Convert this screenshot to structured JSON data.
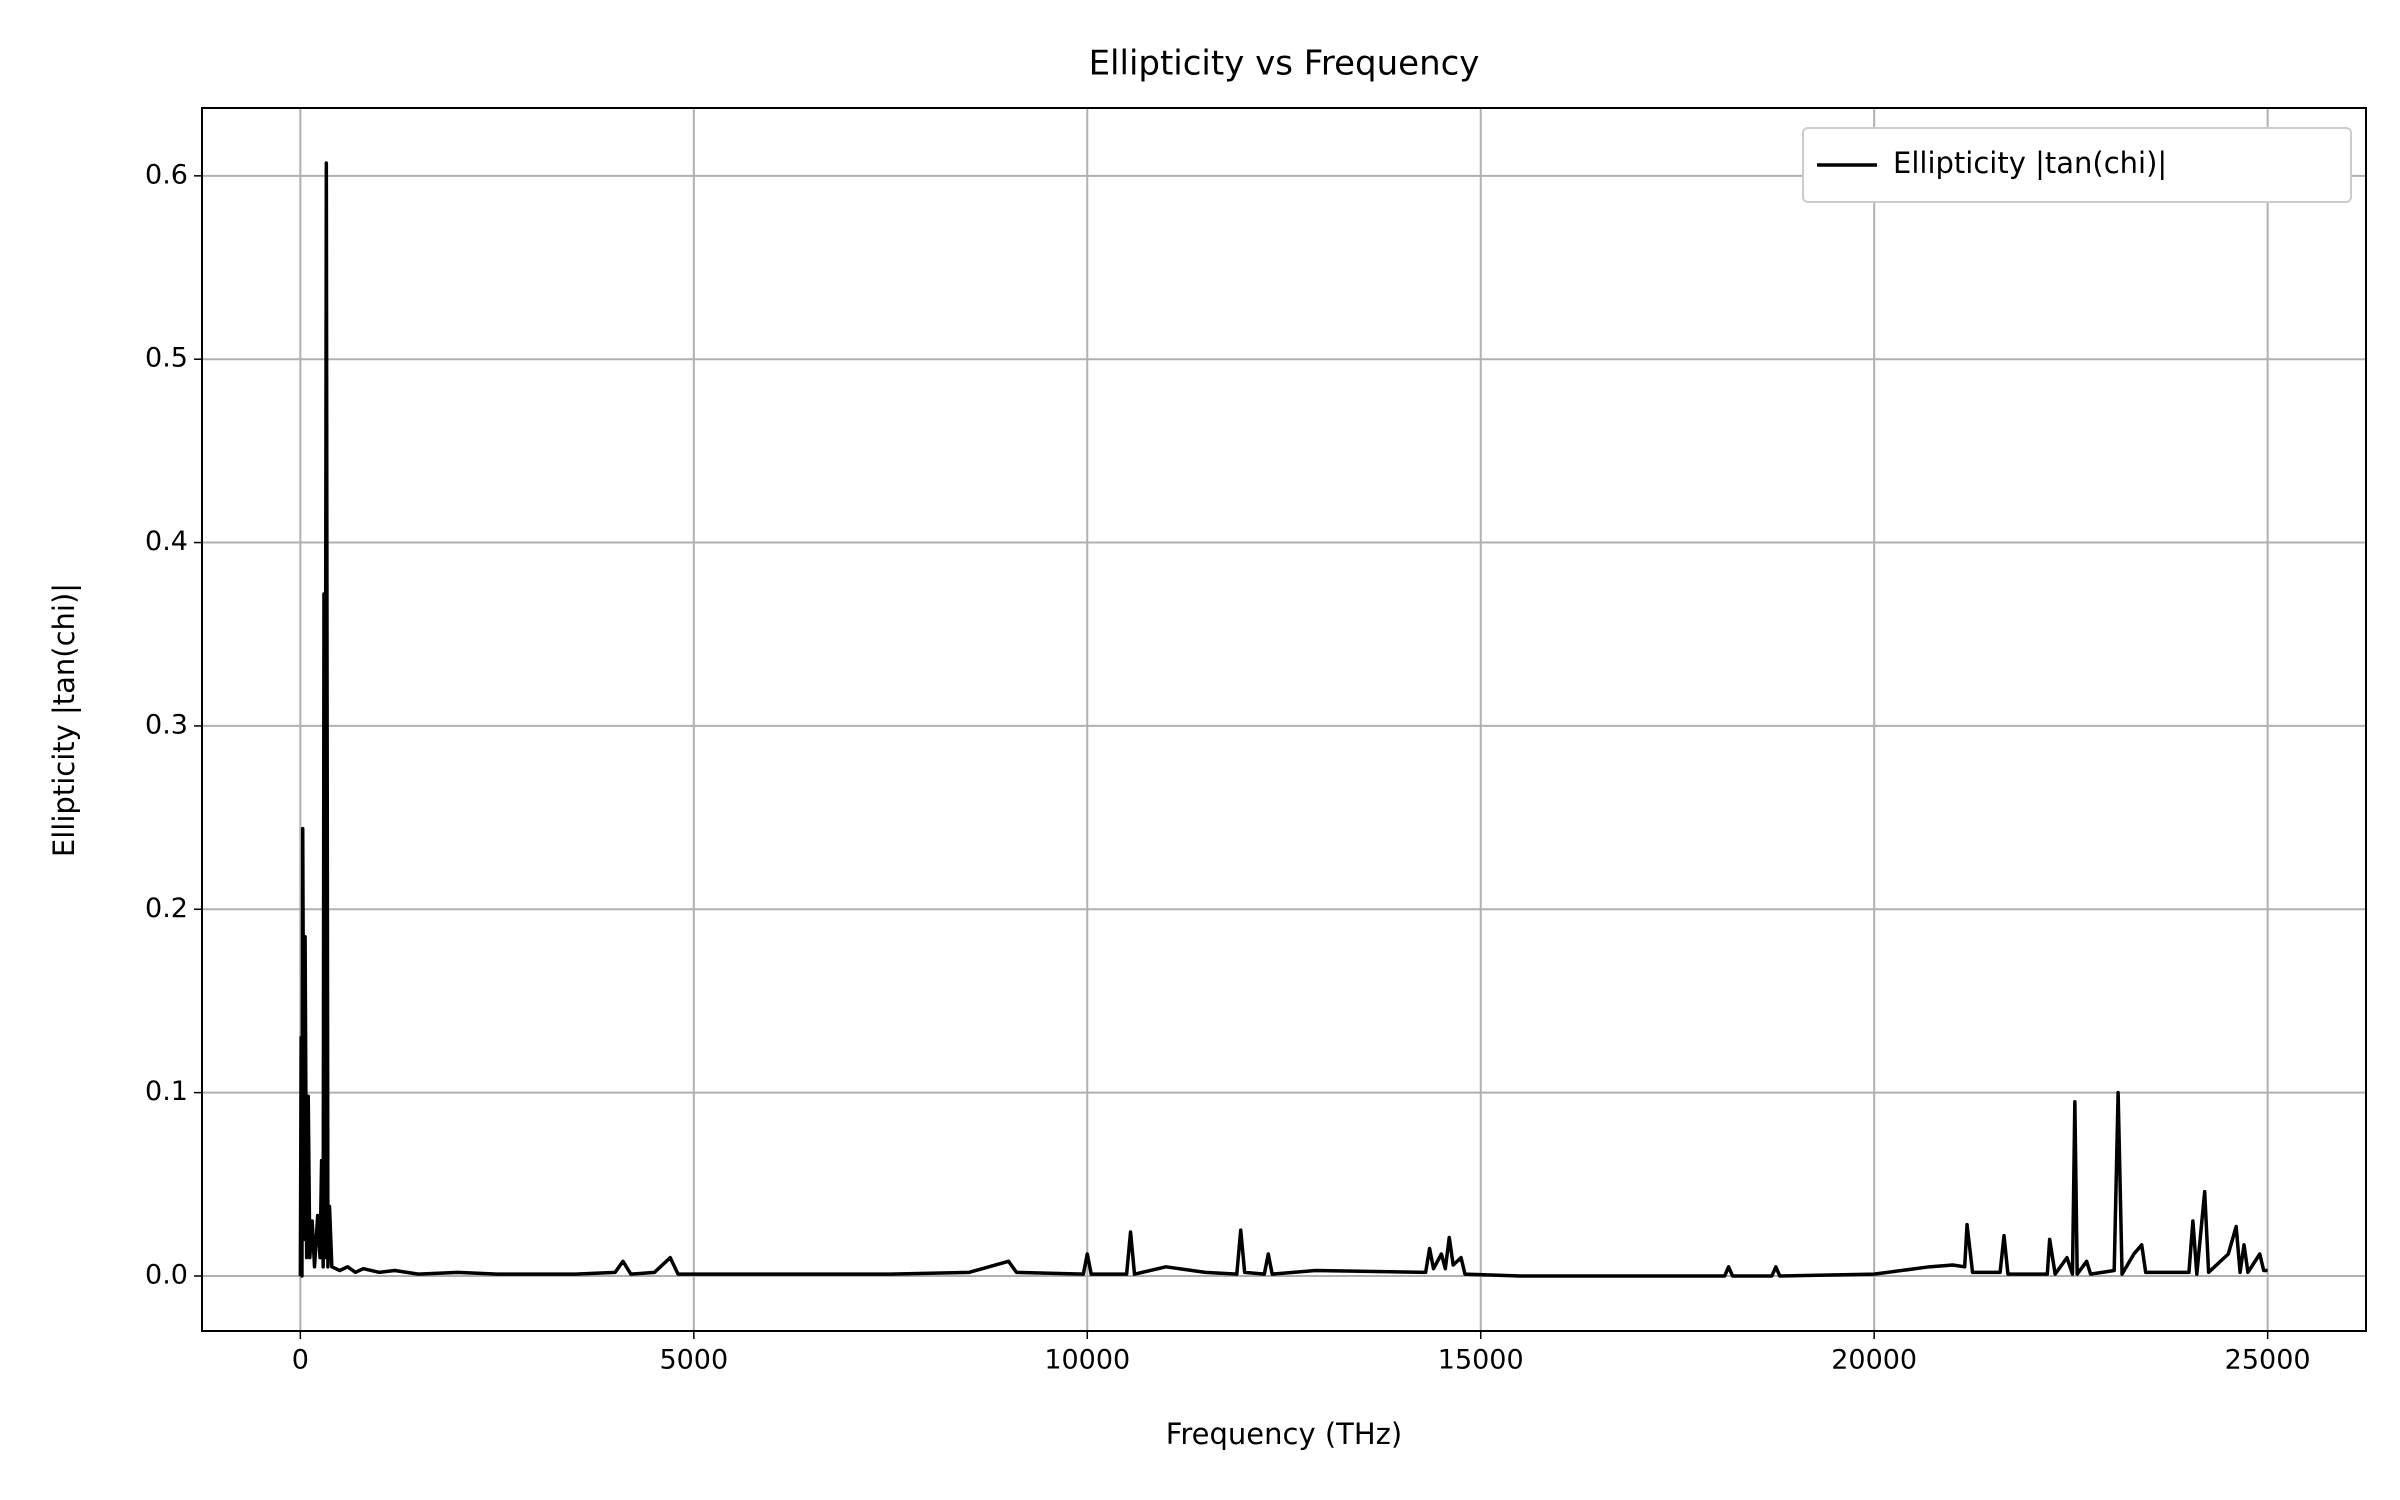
{
  "chart_data": {
    "type": "line",
    "title": "Ellipticity vs Frequency",
    "xlabel": "Frequency (THz)",
    "ylabel": "Ellipticity |tan(chi)|",
    "x": [
      0,
      10,
      20,
      30,
      50,
      60,
      80,
      100,
      120,
      150,
      180,
      220,
      250,
      270,
      290,
      300,
      310,
      330,
      350,
      370,
      400,
      500,
      600,
      700,
      800,
      1000,
      1200,
      1500,
      2000,
      2500,
      3000,
      3500,
      4000,
      4100,
      4200,
      4500,
      4700,
      4800,
      5500,
      6500,
      7500,
      8500,
      9000,
      9100,
      9950,
      10000,
      10050,
      10500,
      10550,
      10600,
      11000,
      11500,
      11900,
      11950,
      12000,
      12250,
      12300,
      12350,
      12900,
      14300,
      14350,
      14400,
      14500,
      14550,
      14600,
      14650,
      14750,
      14800,
      15500,
      17000,
      18100,
      18150,
      18200,
      18700,
      18750,
      18800,
      20000,
      20700,
      21000,
      21150,
      21180,
      21250,
      21600,
      21650,
      21700,
      22200,
      22230,
      22300,
      22450,
      22520,
      22550,
      22580,
      22700,
      22750,
      23050,
      23100,
      23150,
      23300,
      23400,
      23450,
      24000,
      24050,
      24100,
      24200,
      24250,
      24500,
      24600,
      24650,
      24700,
      24750,
      24900,
      24950,
      25000
    ],
    "series": [
      {
        "name": "Ellipticity |tan(chi)|",
        "color": "#000000",
        "values": [
          0,
          0.13,
          0.0,
          0.244,
          0.02,
          0.185,
          0.01,
          0.098,
          0.01,
          0.03,
          0.005,
          0.033,
          0.01,
          0.063,
          0.005,
          0.372,
          0.01,
          0.607,
          0.005,
          0.038,
          0.005,
          0.003,
          0.005,
          0.002,
          0.004,
          0.002,
          0.003,
          0.001,
          0.002,
          0.001,
          0.001,
          0.001,
          0.002,
          0.008,
          0.001,
          0.002,
          0.01,
          0.001,
          0.001,
          0.001,
          0.001,
          0.002,
          0.008,
          0.002,
          0.001,
          0.012,
          0.001,
          0.001,
          0.024,
          0.001,
          0.005,
          0.002,
          0.001,
          0.025,
          0.002,
          0.001,
          0.012,
          0.001,
          0.003,
          0.002,
          0.015,
          0.004,
          0.012,
          0.004,
          0.021,
          0.006,
          0.01,
          0.001,
          0.0,
          0.0,
          0.0,
          0.005,
          0.0,
          0.0,
          0.005,
          0.0,
          0.001,
          0.005,
          0.006,
          0.005,
          0.028,
          0.002,
          0.002,
          0.022,
          0.001,
          0.001,
          0.02,
          0.001,
          0.01,
          0.001,
          0.095,
          0.001,
          0.008,
          0.001,
          0.003,
          0.1,
          0.001,
          0.012,
          0.017,
          0.002,
          0.002,
          0.03,
          0.001,
          0.046,
          0.002,
          0.012,
          0.027,
          0.002,
          0.017,
          0.002,
          0.012,
          0.003,
          0.003
        ]
      }
    ],
    "xlim": [
      -1250,
      26250
    ],
    "xticks": [
      0,
      5000,
      10000,
      15000,
      20000,
      25000
    ],
    "ylim": [
      -0.03,
      0.637
    ],
    "yticks": [
      {
        "value": 0,
        "label": "0.0"
      },
      0.1,
      0.2,
      0.3,
      0.4,
      0.5,
      0.6
    ],
    "grid": true,
    "legend": "upper right"
  }
}
